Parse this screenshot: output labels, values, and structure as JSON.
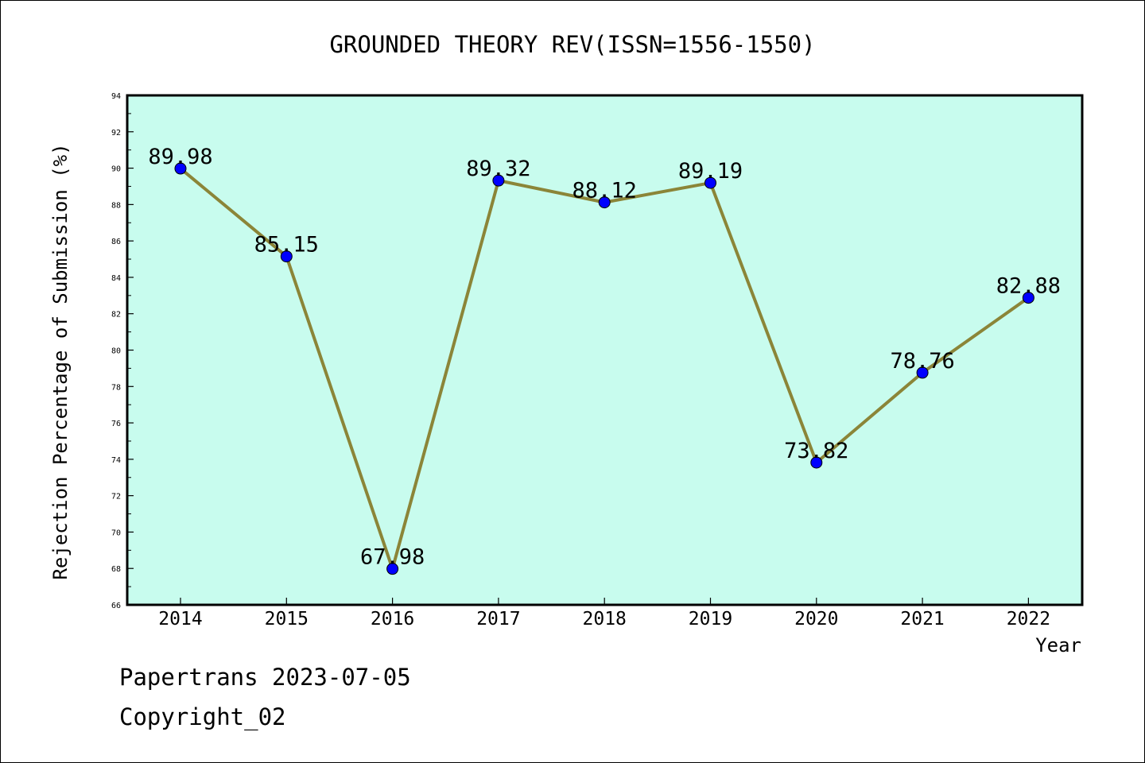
{
  "chart_data": {
    "type": "line",
    "title": "GROUNDED THEORY REV(ISSN=1556-1550)",
    "xlabel": "Year",
    "ylabel": "Rejection Percentage of Submission (%)",
    "categories": [
      "2014",
      "2015",
      "2016",
      "2017",
      "2018",
      "2019",
      "2020",
      "2021",
      "2022"
    ],
    "series": [
      {
        "values": [
          89.98,
          85.15,
          67.98,
          89.32,
          88.12,
          89.19,
          73.82,
          78.76,
          82.88
        ]
      }
    ],
    "data_labels": [
      "89.98",
      "85.15",
      "67.98",
      "89.32",
      "88.12",
      "89.19",
      "73.82",
      "78.76",
      "82.88"
    ],
    "ylim": [
      66,
      94
    ],
    "yticks": [
      66,
      68,
      70,
      72,
      74,
      76,
      78,
      80,
      82,
      84,
      86,
      88,
      90,
      92,
      94
    ],
    "grid": false,
    "legend": "none",
    "colors": {
      "plot_background": "#c8fcee",
      "line": "#8b8538",
      "marker": "#0000ff"
    }
  },
  "footer": {
    "source": "Papertrans 2023-07-05",
    "copyright": "Copyright_02"
  }
}
